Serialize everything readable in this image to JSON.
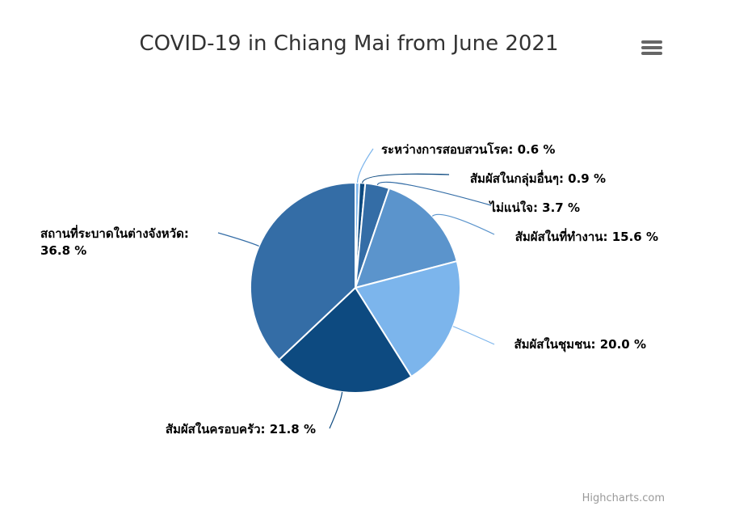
{
  "chart_data": {
    "type": "pie",
    "title": "COVID-19 in Chiang Mai from June 2021",
    "series": [
      {
        "values": [
          {
            "name": "ระหว่างการสอบสวนโรค",
            "value": 0.6,
            "color": "#7cb5ec",
            "label": "ระหว่างการสอบสวนโรค: 0.6 %"
          },
          {
            "name": "สัมผัสในกลุ่มอื่นๆ",
            "value": 0.9,
            "color": "#0d4a80",
            "label": "สัมผัสในกลุ่มอื่นๆ: 0.9 %"
          },
          {
            "name": "ไม่แน่ใจ",
            "value": 3.7,
            "color": "#346da6",
            "label": "ไม่แน่ใจ: 3.7 %"
          },
          {
            "name": "สัมผัสในที่ทำงาน",
            "value": 15.6,
            "color": "#5b94cc",
            "label": "สัมผัสในที่ทำงาน: 15.6 %"
          },
          {
            "name": "สัมผัสในชุมชน",
            "value": 20.0,
            "color": "#7cb5ec",
            "label": "สัมผัสในชุมชน: 20.0 %"
          },
          {
            "name": "สัมผัสในครอบครัว",
            "value": 21.8,
            "color": "#0d4a80",
            "label": "สัมผัสในครอบครัว: 21.8 %"
          },
          {
            "name": "สถานที่ระบาดในต่างจังหวัด",
            "value": 36.8,
            "color": "#346da6",
            "label_lines": [
              "สถานที่ระบาดในต่างจังหวัด:",
              "36.8 %"
            ]
          }
        ]
      }
    ]
  },
  "credits": "Highcharts.com",
  "menu_icon": "hamburger-menu-icon"
}
